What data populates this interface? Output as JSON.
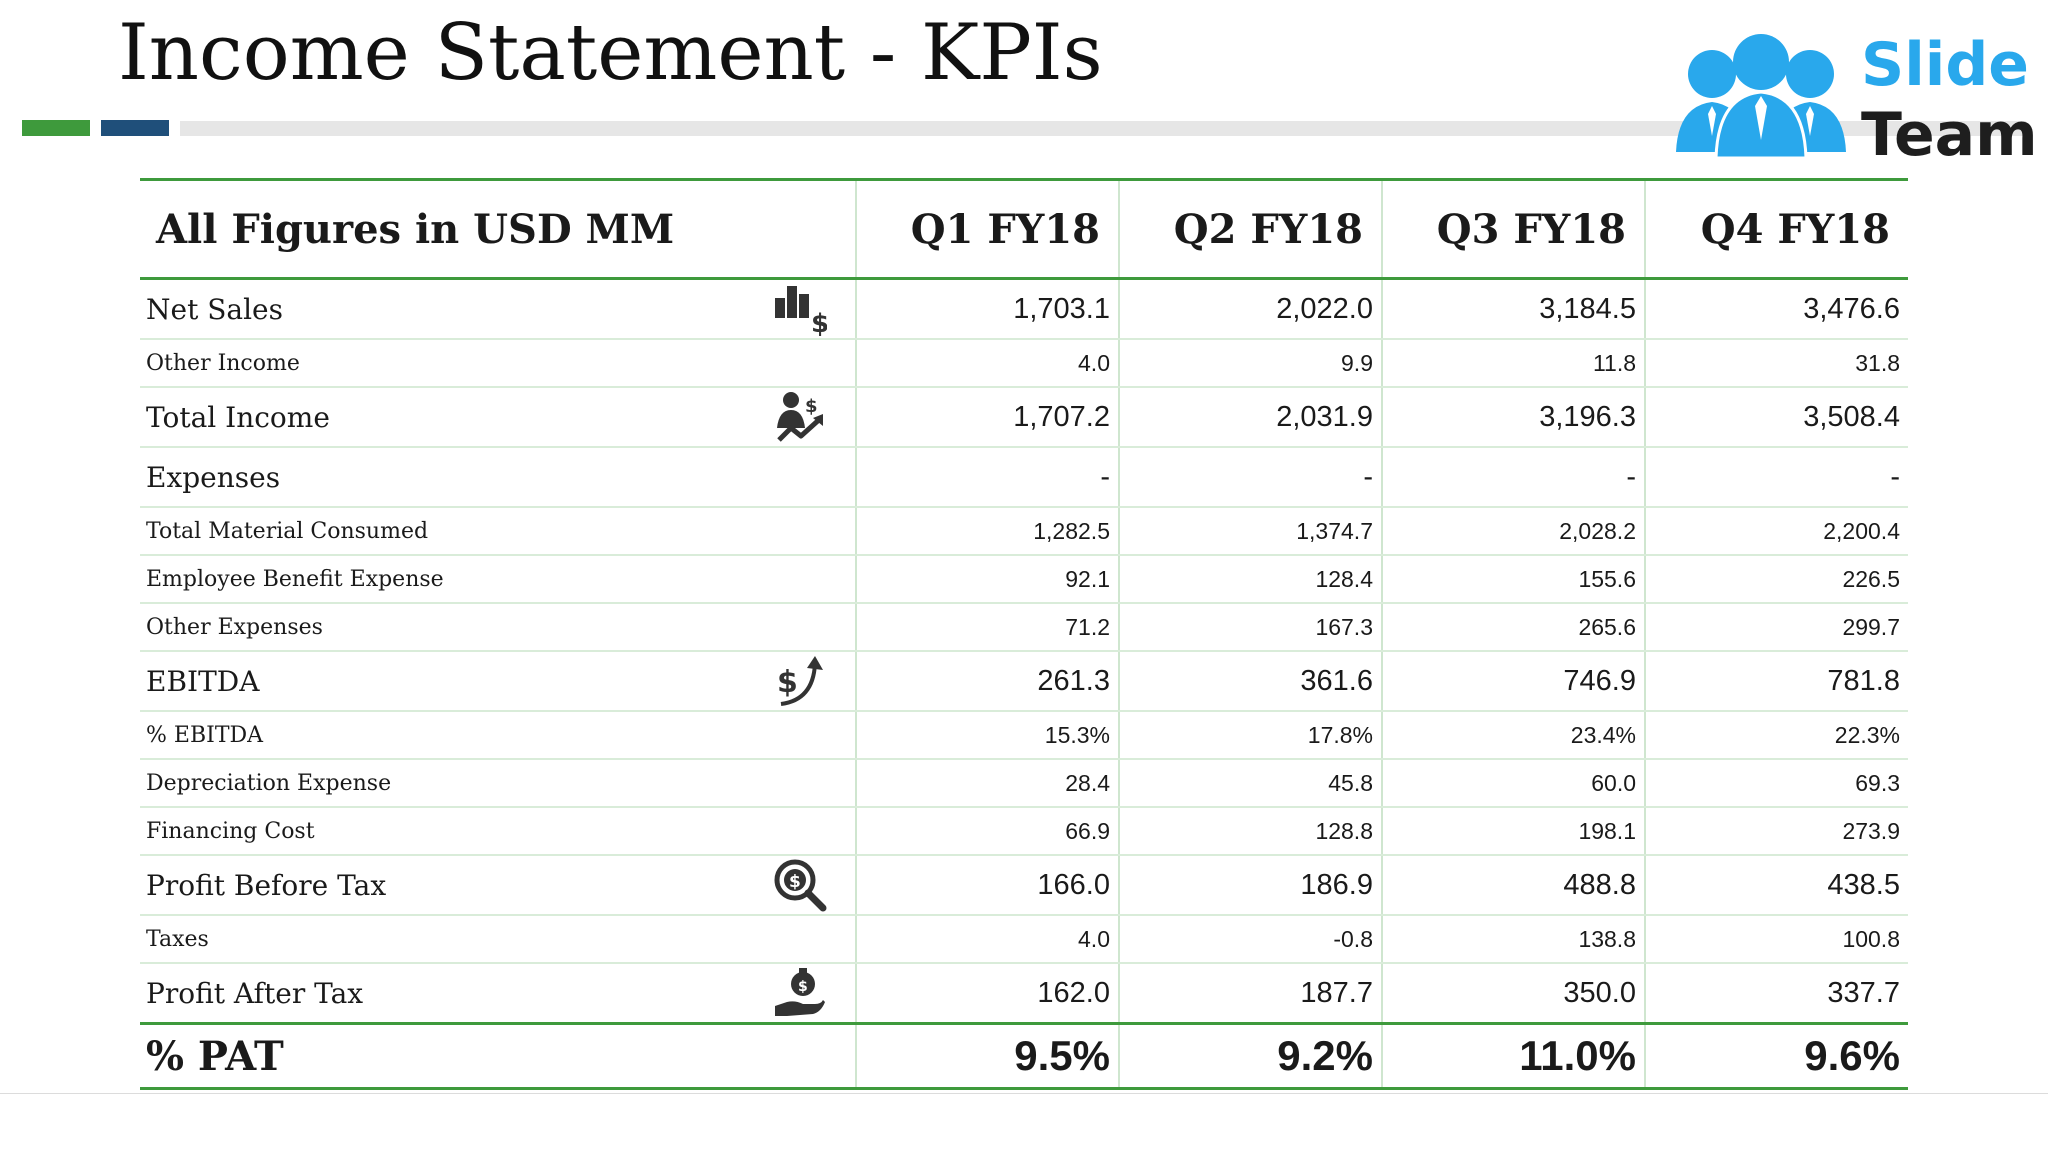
{
  "title": "Income Statement - KPIs",
  "logo": {
    "line1": "Slide",
    "line2": "Team",
    "colors": {
      "primary": "#29a8ec",
      "secondary": "#1e1e1e"
    }
  },
  "accent_colors": {
    "green": "#3e9a3c",
    "blue": "#1f4f7a",
    "gray": "#e6e6e6"
  },
  "table": {
    "header": [
      "All Figures in USD MM",
      "Q1 FY18",
      "Q2 FY18",
      "Q3 FY18",
      "Q4 FY18"
    ],
    "rows": [
      {
        "label": "Net Sales",
        "icon": "bar-chart-dollar-icon",
        "values": [
          "1,703.1",
          "2,022.0",
          "3,184.5",
          "3,476.6"
        ]
      },
      {
        "label": "Other Income",
        "values": [
          "4.0",
          "9.9",
          "11.8",
          "31.8"
        ]
      },
      {
        "label": "Total Income",
        "icon": "businessman-growth-icon",
        "values": [
          "1,707.2",
          "2,031.9",
          "3,196.3",
          "3,508.4"
        ]
      },
      {
        "label": "Expenses",
        "values": [
          "-",
          "-",
          "-",
          "-"
        ]
      },
      {
        "label": "Total Material Consumed",
        "values": [
          "1,282.5",
          "1,374.7",
          "2,028.2",
          "2,200.4"
        ]
      },
      {
        "label": "Employee Benefit Expense",
        "values": [
          "92.1",
          "128.4",
          "155.6",
          "226.5"
        ]
      },
      {
        "label": "Other Expenses",
        "values": [
          "71.2",
          "167.3",
          "265.6",
          "299.7"
        ]
      },
      {
        "label": "EBITDA",
        "icon": "dollar-arrow-up-icon",
        "values": [
          "261.3",
          "361.6",
          "746.9",
          "781.8"
        ]
      },
      {
        "label": "% EBITDA",
        "values": [
          "15.3%",
          "17.8%",
          "23.4%",
          "22.3%"
        ]
      },
      {
        "label": "Depreciation Expense",
        "values": [
          "28.4",
          "45.8",
          "60.0",
          "69.3"
        ]
      },
      {
        "label": "Financing Cost",
        "values": [
          "66.9",
          "128.8",
          "198.1",
          "273.9"
        ]
      },
      {
        "label": "Profit Before Tax",
        "icon": "dollar-magnifier-icon",
        "values": [
          "166.0",
          "186.9",
          "488.8",
          "438.5"
        ]
      },
      {
        "label": "Taxes",
        "values": [
          "4.0",
          "-0.8",
          "138.8",
          "100.8"
        ]
      },
      {
        "label": "Profit After Tax",
        "icon": "hand-money-bag-icon",
        "values": [
          "162.0",
          "187.7",
          "350.0",
          "337.7"
        ]
      },
      {
        "label": "% PAT",
        "values": [
          "9.5%",
          "9.2%",
          "11.0%",
          "9.6%"
        ]
      }
    ]
  }
}
